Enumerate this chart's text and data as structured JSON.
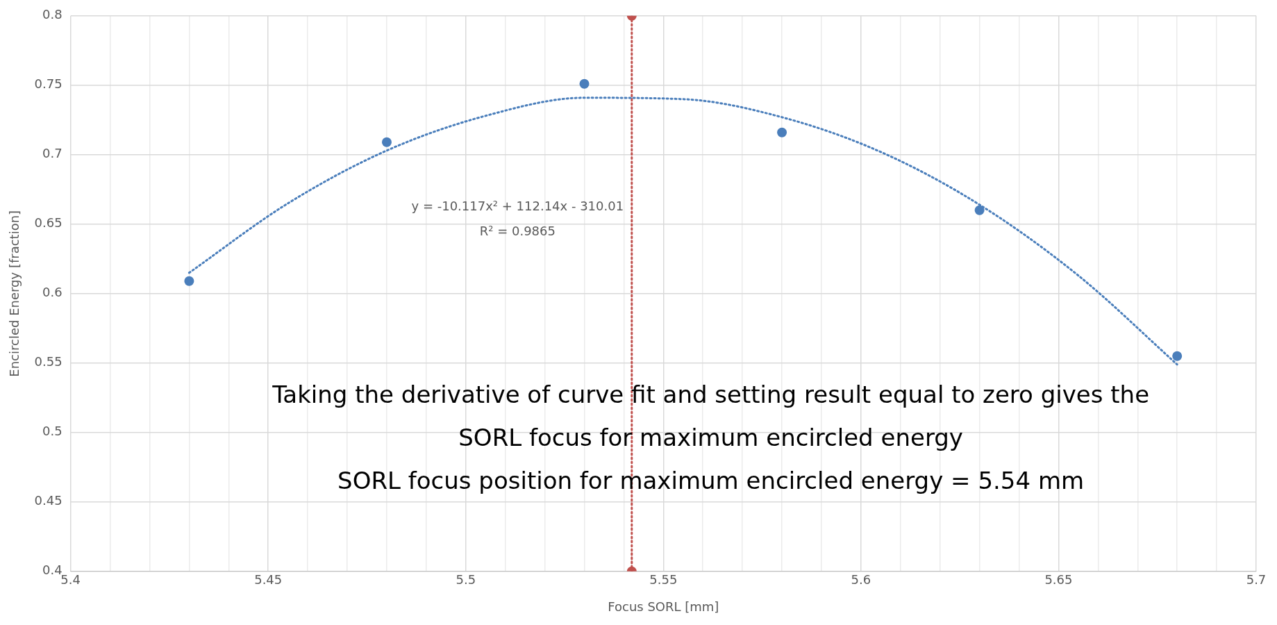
{
  "chart_data": {
    "type": "scatter",
    "xlabel": "Focus SORL [mm]",
    "ylabel": "Encircled Energy [fraction]",
    "xlim": [
      5.4,
      5.7
    ],
    "xticks": [
      5.4,
      {
        "value": 5.41,
        "label": null
      },
      {
        "value": 5.42,
        "label": null
      },
      {
        "value": 5.43,
        "label": null
      },
      {
        "value": 5.44,
        "label": null
      },
      5.45,
      {
        "value": 5.46,
        "label": null
      },
      {
        "value": 5.47,
        "label": null
      },
      {
        "value": 5.48,
        "label": null
      },
      {
        "value": 5.49,
        "label": null
      },
      5.5,
      {
        "value": 5.51,
        "label": null
      },
      {
        "value": 5.52,
        "label": null
      },
      {
        "value": 5.53,
        "label": null
      },
      {
        "value": 5.54,
        "label": null
      },
      5.55,
      {
        "value": 5.56,
        "label": null
      },
      {
        "value": 5.57,
        "label": null
      },
      {
        "value": 5.58,
        "label": null
      },
      {
        "value": 5.59,
        "label": null
      },
      5.6,
      {
        "value": 5.61,
        "label": null
      },
      {
        "value": 5.62,
        "label": null
      },
      {
        "value": 5.63,
        "label": null
      },
      {
        "value": 5.64,
        "label": null
      },
      5.65,
      {
        "value": 5.66,
        "label": null
      },
      {
        "value": 5.67,
        "label": null
      },
      {
        "value": 5.68,
        "label": null
      },
      {
        "value": 5.69,
        "label": null
      },
      5.7
    ],
    "ylim": [
      0.4,
      0.8
    ],
    "yticks": [
      0.4,
      0.45,
      0.5,
      0.55,
      0.6,
      0.65,
      0.7,
      0.75,
      0.8
    ],
    "grid": true,
    "legend": false,
    "series": [
      {
        "type": "scatter",
        "color": "#4a7ebb",
        "marker": "circle",
        "x": [
          5.43,
          5.48,
          5.53,
          5.58,
          5.63,
          5.68
        ],
        "values": [
          0.609,
          0.709,
          0.751,
          0.716,
          0.66,
          0.555
        ]
      },
      {
        "type": "line",
        "color": "#4a7ebb",
        "marker": "none",
        "line_style": "dotted",
        "x": [
          5.43,
          5.455,
          5.48,
          5.505,
          5.53,
          5.555,
          5.58,
          5.605,
          5.63,
          5.655,
          5.68
        ],
        "values": [
          0.615,
          0.665,
          0.703,
          0.728,
          0.741,
          0.74,
          0.727,
          0.702,
          0.664,
          0.613,
          0.549
        ]
      },
      {
        "type": "line",
        "color": "#c0504d",
        "marker": "circle",
        "line_style": "dotted",
        "x": [
          5.542,
          5.542
        ],
        "values": [
          0.4,
          0.8
        ]
      }
    ],
    "annotations": [
      "y = -10.117x² + 112.14x - 310.01",
      "R² = 0.9865",
      "Taking the derivative of curve fit and setting result equal to zero gives the",
      "SORL focus for maximum encircled energy",
      "SORL focus position for maximum encircled energy = 5.54 mm"
    ]
  }
}
